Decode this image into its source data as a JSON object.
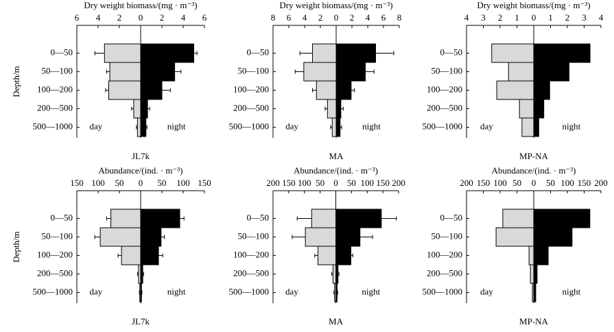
{
  "chart_data": [
    {
      "type": "bar",
      "title": "Dry weight biomass/(mg · m⁻³)",
      "label": "JL7k",
      "ylabel": "Depth/m",
      "categories": [
        "0—50",
        "50—100",
        "100—200",
        "200—500",
        "500—1000"
      ],
      "series": [
        {
          "name": "day",
          "color": "#d9d9d9",
          "values": [
            -3.4,
            -2.9,
            -3.0,
            -0.65,
            -0.3
          ],
          "errors": [
            0.9,
            0.3,
            0.3,
            0.2,
            0.1
          ]
        },
        {
          "name": "night",
          "color": "#000000",
          "values": [
            5.0,
            3.2,
            2.0,
            0.65,
            0.5
          ],
          "errors": [
            0.3,
            0.6,
            0.8,
            0.2,
            0.1
          ]
        }
      ],
      "xlim": [
        -6,
        6
      ],
      "xticks": [
        {
          "value": -6,
          "label": "6"
        },
        {
          "value": -4,
          "label": "4"
        },
        {
          "value": -2,
          "label": "2"
        },
        0,
        2,
        4,
        6
      ]
    },
    {
      "type": "bar",
      "title": "Dry weight biomass/(mg · m⁻³)",
      "label": "MA",
      "categories": [
        "0—50",
        "50—100",
        "100—200",
        "200—500",
        "500—1000"
      ],
      "series": [
        {
          "name": "day",
          "color": "#d9d9d9",
          "values": [
            -3.0,
            -4.1,
            -2.5,
            -1.1,
            -0.5
          ],
          "errors": [
            1.6,
            1.1,
            0.5,
            0.3,
            0.2
          ]
        },
        {
          "name": "night",
          "color": "#000000",
          "values": [
            5.0,
            3.7,
            1.9,
            0.6,
            0.5
          ],
          "errors": [
            2.3,
            1.1,
            0.4,
            0.3,
            0.2
          ]
        }
      ],
      "xlim": [
        -8,
        8
      ],
      "xticks": [
        {
          "value": -8,
          "label": "8"
        },
        {
          "value": -6,
          "label": "6"
        },
        {
          "value": -4,
          "label": "4"
        },
        {
          "value": -2,
          "label": "2"
        },
        0,
        2,
        4,
        6,
        8
      ]
    },
    {
      "type": "bar",
      "title": "Dry weight biomass/(mg · m⁻³)",
      "label": "MP-NA",
      "categories": [
        "0—50",
        "50—100",
        "100—200",
        "200—500",
        "500—1000"
      ],
      "series": [
        {
          "name": "day",
          "color": "#d9d9d9",
          "values": [
            -2.5,
            -1.5,
            -2.2,
            -0.85,
            -0.7
          ]
        },
        {
          "name": "night",
          "color": "#000000",
          "values": [
            3.35,
            2.1,
            0.95,
            0.6,
            0.3
          ]
        }
      ],
      "xlim": [
        -4,
        4
      ],
      "xticks": [
        {
          "value": -4,
          "label": "4"
        },
        {
          "value": -3,
          "label": "3"
        },
        {
          "value": -2,
          "label": "2"
        },
        {
          "value": -1,
          "label": "1"
        },
        0,
        1,
        2,
        3,
        4
      ]
    },
    {
      "type": "bar",
      "title": "Abundance/(ind. · m⁻³)",
      "label": "JL7k",
      "ylabel": "Depth/m",
      "categories": [
        "0—50",
        "50—100",
        "100—200",
        "200—500",
        "500—1000"
      ],
      "series": [
        {
          "name": "day",
          "color": "#d9d9d9",
          "values": [
            -70,
            -95,
            -45,
            -5,
            -2
          ],
          "errors": [
            10,
            13,
            8,
            2,
            1
          ]
        },
        {
          "name": "night",
          "color": "#000000",
          "values": [
            92,
            48,
            42,
            5,
            2
          ],
          "errors": [
            10,
            8,
            10,
            2,
            1
          ]
        }
      ],
      "xlim": [
        -150,
        150
      ],
      "xticks": [
        {
          "value": -150,
          "label": "150"
        },
        {
          "value": -100,
          "label": "100"
        },
        {
          "value": -50,
          "label": "50"
        },
        0,
        50,
        100,
        150
      ]
    },
    {
      "type": "bar",
      "title": "Abundance/(ind. · m⁻³)",
      "label": "MA",
      "categories": [
        "0—50",
        "50—100",
        "100—200",
        "200—500",
        "500—1000"
      ],
      "series": [
        {
          "name": "day",
          "color": "#d9d9d9",
          "values": [
            -77,
            -97,
            -57,
            -9,
            -4
          ],
          "errors": [
            46,
            42,
            10,
            4,
            2
          ]
        },
        {
          "name": "night",
          "color": "#000000",
          "values": [
            145,
            77,
            48,
            7,
            4
          ],
          "errors": [
            48,
            40,
            6,
            3,
            2
          ]
        }
      ],
      "xlim": [
        -200,
        200
      ],
      "xticks": [
        {
          "value": -200,
          "label": "200"
        },
        {
          "value": -150,
          "label": "150"
        },
        {
          "value": -100,
          "label": "100"
        },
        {
          "value": -50,
          "label": "50"
        },
        0,
        50,
        100,
        150,
        200
      ]
    },
    {
      "type": "bar",
      "title": "Abundance/(ind. · m⁻³)",
      "label": "MP-NA",
      "categories": [
        "0—50",
        "50—100",
        "100—200",
        "200—500",
        "500—1000"
      ],
      "series": [
        {
          "name": "day",
          "color": "#d9d9d9",
          "values": [
            -92,
            -112,
            -14,
            -10,
            -4
          ]
        },
        {
          "name": "night",
          "color": "#000000",
          "values": [
            167,
            114,
            43,
            10,
            6
          ]
        }
      ],
      "xlim": [
        -200,
        200
      ],
      "xticks": [
        {
          "value": -200,
          "label": "200"
        },
        {
          "value": -150,
          "label": "150"
        },
        {
          "value": -100,
          "label": "100"
        },
        {
          "value": -50,
          "label": "50"
        },
        0,
        50,
        100,
        150,
        200
      ]
    }
  ]
}
